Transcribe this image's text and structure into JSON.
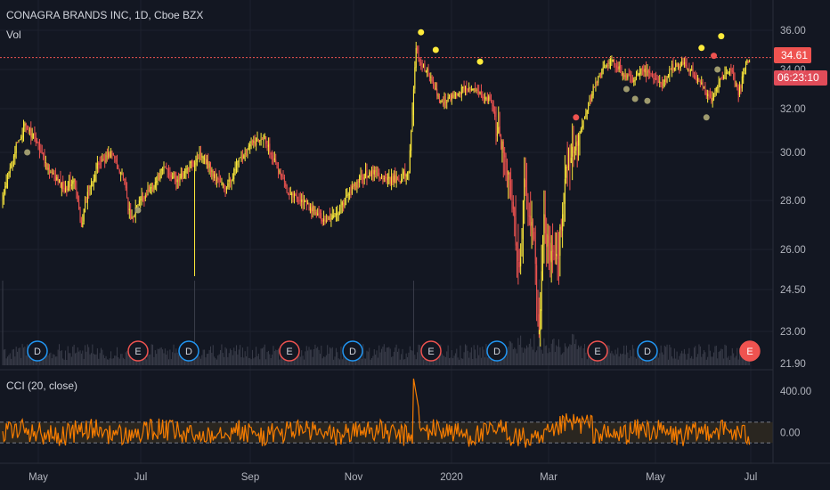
{
  "header": {
    "title": "CONAGRA BRANDS INC, 1D, Cboe BZX",
    "volume_label": "Vol"
  },
  "indicator": {
    "label": "CCI (20, close)"
  },
  "price_tag": {
    "value": "34.61",
    "countdown": "06:23:10"
  },
  "colors": {
    "background": "#131722",
    "up": "#ffeb3b",
    "down": "#ef5350",
    "cci_line": "#f57c00",
    "price_line": "#ef5350",
    "grid": "#1e222d",
    "dividend": "#2196f3",
    "earnings": "#ef5350"
  },
  "chart_data": [
    {
      "type": "candlestick",
      "title": "CONAGRA BRANDS INC, 1D, Cboe BZX",
      "yticks": [
        "36.00",
        "34.00",
        "32.00",
        "30.00",
        "28.00",
        "26.00",
        "24.50",
        "23.00",
        "21.90"
      ],
      "xticks": [
        "May",
        "Jul",
        "Sep",
        "Nov",
        "2020",
        "Mar",
        "May",
        "Jul"
      ],
      "last_price": 34.61,
      "ylim": [
        21.9,
        36.0
      ],
      "log_scale": true,
      "close_anchors": [
        [
          0,
          28.0
        ],
        [
          8,
          29.8
        ],
        [
          18,
          31.2
        ],
        [
          28,
          30.5
        ],
        [
          38,
          29.2
        ],
        [
          50,
          28.5
        ],
        [
          58,
          28.8
        ],
        [
          64,
          27.0
        ],
        [
          70,
          28.5
        ],
        [
          78,
          29.5
        ],
        [
          88,
          30.0
        ],
        [
          98,
          29.0
        ],
        [
          104,
          27.2
        ],
        [
          112,
          28.0
        ],
        [
          122,
          28.6
        ],
        [
          132,
          29.4
        ],
        [
          142,
          28.8
        ],
        [
          152,
          29.4
        ],
        [
          162,
          30.0
        ],
        [
          172,
          29.0
        ],
        [
          182,
          28.5
        ],
        [
          192,
          29.6
        ],
        [
          202,
          30.4
        ],
        [
          212,
          30.8
        ],
        [
          222,
          29.5
        ],
        [
          232,
          28.4
        ],
        [
          242,
          28.0
        ],
        [
          252,
          27.6
        ],
        [
          262,
          27.2
        ],
        [
          272,
          27.5
        ],
        [
          282,
          28.3
        ],
        [
          292,
          29.0
        ],
        [
          302,
          29.2
        ],
        [
          312,
          28.8
        ],
        [
          322,
          28.9
        ],
        [
          330,
          29.2
        ],
        [
          336,
          35.0
        ],
        [
          340,
          34.3
        ],
        [
          346,
          33.8
        ],
        [
          356,
          32.3
        ],
        [
          366,
          32.6
        ],
        [
          376,
          33.1
        ],
        [
          386,
          32.8
        ],
        [
          396,
          32.5
        ],
        [
          404,
          30.5
        ],
        [
          410,
          29.5
        ],
        [
          416,
          27.0
        ],
        [
          420,
          25.0
        ],
        [
          424,
          28.5
        ],
        [
          428,
          27.5
        ],
        [
          432,
          26.0
        ],
        [
          436,
          23.2
        ],
        [
          440,
          27.0
        ],
        [
          446,
          25.5
        ],
        [
          452,
          26.0
        ],
        [
          458,
          29.0
        ],
        [
          466,
          30.5
        ],
        [
          472,
          31.5
        ],
        [
          480,
          33.0
        ],
        [
          488,
          34.0
        ],
        [
          496,
          34.4
        ],
        [
          504,
          33.8
        ],
        [
          512,
          33.5
        ],
        [
          520,
          34.0
        ],
        [
          528,
          33.6
        ],
        [
          536,
          33.1
        ],
        [
          544,
          34.1
        ],
        [
          552,
          34.3
        ],
        [
          560,
          33.9
        ],
        [
          568,
          33.2
        ],
        [
          576,
          32.4
        ],
        [
          584,
          33.6
        ],
        [
          592,
          34.1
        ],
        [
          598,
          32.7
        ],
        [
          604,
          34.4
        ]
      ],
      "high_markers": [
        [
          340,
          35.9
        ],
        [
          352,
          35.0
        ],
        [
          388,
          34.4
        ],
        [
          568,
          35.1
        ],
        [
          584,
          35.7
        ]
      ],
      "low_markers": [
        [
          20,
          30.0
        ],
        [
          110,
          27.6
        ],
        [
          507,
          33.0
        ],
        [
          514,
          32.5
        ],
        [
          524,
          32.4
        ],
        [
          572,
          31.6
        ],
        [
          581,
          34.0
        ]
      ]
    },
    {
      "type": "bar",
      "title": "Vol",
      "events": [
        {
          "label": "D",
          "kind": "dividend"
        },
        {
          "label": "E",
          "kind": "earnings"
        },
        {
          "label": "D",
          "kind": "dividend"
        },
        {
          "label": "E",
          "kind": "earnings"
        },
        {
          "label": "D",
          "kind": "dividend"
        },
        {
          "label": "E",
          "kind": "earnings"
        },
        {
          "label": "D",
          "kind": "dividend"
        },
        {
          "label": "E",
          "kind": "earnings"
        },
        {
          "label": "D",
          "kind": "dividend"
        },
        {
          "label": "E",
          "kind": "earnings"
        }
      ]
    },
    {
      "type": "line",
      "title": "CCI (20, close)",
      "yticks": [
        "400.00",
        "0.00"
      ],
      "bands": [
        -100,
        100
      ],
      "ylim": [
        -280,
        520
      ]
    }
  ]
}
